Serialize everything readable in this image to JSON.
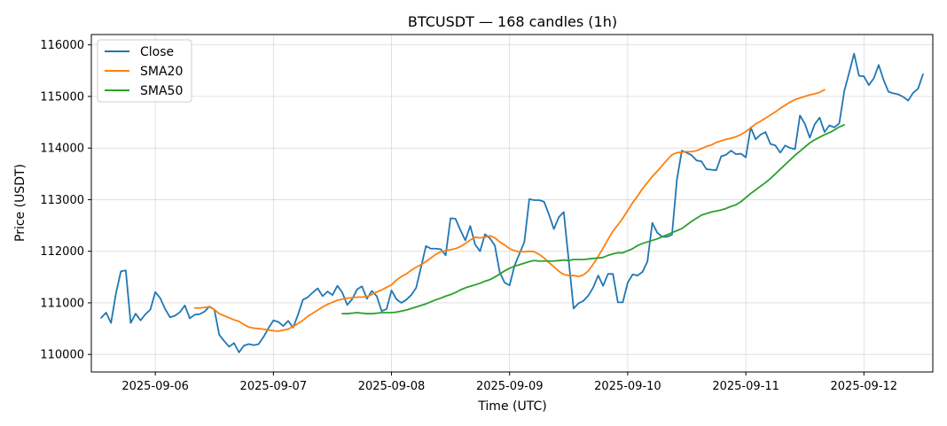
{
  "chart_data": {
    "type": "line",
    "title": "BTCUSDT — 168 candles (1h)",
    "xlabel": "Time (UTC)",
    "ylabel": "Price (USDT)",
    "x_unit": "hours",
    "x_start": "2025-09-05T13:00",
    "x_range": [
      "2025-09-05T11:00",
      "2025-09-12T14:00"
    ],
    "ylim": [
      109660,
      116200
    ],
    "yticks": [
      110000,
      111000,
      112000,
      113000,
      114000,
      115000,
      116000
    ],
    "ytick_labels": [
      "110000",
      "111000",
      "112000",
      "113000",
      "114000",
      "115000",
      "116000"
    ],
    "xticks": [
      "2025-09-06T00:00",
      "2025-09-07T00:00",
      "2025-09-08T00:00",
      "2025-09-09T00:00",
      "2025-09-10T00:00",
      "2025-09-11T00:00",
      "2025-09-12T00:00"
    ],
    "xtick_labels": [
      "2025-09-06",
      "2025-09-07",
      "2025-09-08",
      "2025-09-09",
      "2025-09-10",
      "2025-09-11",
      "2025-09-12"
    ],
    "grid": true,
    "legend_position": "top-left",
    "series": [
      {
        "name": "Close",
        "color": "#1f77b4",
        "start_hour": 0,
        "values": [
          110710,
          110810,
          110610,
          111180,
          111610,
          111630,
          110610,
          110790,
          110660,
          110780,
          110870,
          111210,
          111090,
          110880,
          110720,
          110750,
          110820,
          110950,
          110700,
          110770,
          110780,
          110830,
          110930,
          110870,
          110380,
          110260,
          110150,
          110220,
          110040,
          110170,
          110200,
          110180,
          110200,
          110340,
          110510,
          110660,
          110630,
          110550,
          110650,
          110520,
          110770,
          111060,
          111110,
          111200,
          111280,
          111130,
          111220,
          111150,
          111330,
          111200,
          110960,
          111070,
          111260,
          111320,
          111080,
          111230,
          111130,
          110840,
          110880,
          111240,
          111070,
          111000,
          111060,
          111150,
          111290,
          111690,
          112100,
          112050,
          112050,
          112040,
          111920,
          112640,
          112630,
          112410,
          112210,
          112490,
          112130,
          112000,
          112330,
          112250,
          112110,
          111590,
          111390,
          111340,
          111720,
          111950,
          112180,
          113010,
          112990,
          112990,
          112960,
          112710,
          112430,
          112660,
          112760,
          111830,
          110890,
          110990,
          111040,
          111140,
          111300,
          111530,
          111330,
          111560,
          111560,
          111010,
          111010,
          111390,
          111550,
          111530,
          111600,
          111800,
          112550,
          112360,
          112280,
          112280,
          112320,
          113390,
          113950,
          113910,
          113860,
          113760,
          113740,
          113590,
          113580,
          113570,
          113840,
          113870,
          113950,
          113880,
          113890,
          113820,
          114400,
          114170,
          114260,
          114310,
          114080,
          114050,
          113910,
          114050,
          114000,
          113980,
          114630,
          114470,
          114200,
          114460,
          114590,
          114310,
          114440,
          114400,
          114480,
          115100,
          115460,
          115830,
          115400,
          115390,
          115220,
          115350,
          115610,
          115320,
          115090,
          115060,
          115040,
          114990,
          114920,
          115070,
          115150,
          115430
        ]
      },
      {
        "name": "SMA20",
        "color": "#ff7f0e",
        "start_hour": 19,
        "values": [
          110900,
          110900,
          110910,
          110920,
          110870,
          110790,
          110750,
          110710,
          110670,
          110640,
          110580,
          110530,
          110510,
          110500,
          110490,
          110470,
          110460,
          110450,
          110470,
          110490,
          110540,
          110600,
          110660,
          110740,
          110800,
          110860,
          110920,
          110970,
          111010,
          111050,
          111070,
          111090,
          111100,
          111110,
          111110,
          111120,
          111160,
          111210,
          111250,
          111300,
          111350,
          111440,
          111510,
          111560,
          111630,
          111690,
          111740,
          111800,
          111870,
          111940,
          111990,
          112010,
          112030,
          112050,
          112090,
          112150,
          112220,
          112270,
          112260,
          112270,
          112300,
          112260,
          112180,
          112120,
          112050,
          112010,
          111990,
          111990,
          112000,
          111990,
          111940,
          111870,
          111780,
          111700,
          111610,
          111550,
          111530,
          111530,
          111510,
          111540,
          111620,
          111750,
          111900,
          112060,
          112230,
          112390,
          112510,
          112640,
          112790,
          112940,
          113070,
          113210,
          113330,
          113450,
          113550,
          113660,
          113770,
          113870,
          113910,
          113920,
          113930,
          113930,
          113950,
          113990,
          114030,
          114060,
          114110,
          114140,
          114170,
          114190,
          114220,
          114260,
          114320,
          114390,
          114470,
          114520,
          114580,
          114640,
          114700,
          114770,
          114830,
          114890,
          114940,
          114970,
          115000,
          115030,
          115050,
          115080,
          115130
        ]
      },
      {
        "name": "SMA50",
        "color": "#2ca02c",
        "start_hour": 49,
        "values": [
          110790,
          110790,
          110800,
          110810,
          110800,
          110790,
          110790,
          110800,
          110810,
          110810,
          110810,
          110820,
          110840,
          110860,
          110890,
          110920,
          110950,
          110980,
          111020,
          111060,
          111090,
          111130,
          111160,
          111200,
          111250,
          111290,
          111320,
          111350,
          111380,
          111420,
          111450,
          111500,
          111560,
          111620,
          111670,
          111710,
          111740,
          111770,
          111800,
          111820,
          111810,
          111810,
          111810,
          111810,
          111820,
          111830,
          111820,
          111840,
          111840,
          111840,
          111850,
          111860,
          111870,
          111880,
          111920,
          111950,
          111970,
          111970,
          112010,
          112050,
          112110,
          112150,
          112180,
          112210,
          112240,
          112280,
          112320,
          112360,
          112400,
          112440,
          112510,
          112580,
          112640,
          112700,
          112730,
          112760,
          112780,
          112800,
          112830,
          112870,
          112900,
          112960,
          113040,
          113120,
          113190,
          113260,
          113330,
          113410,
          113500,
          113590,
          113680,
          113770,
          113860,
          113940,
          114020,
          114100,
          114160,
          114210,
          114260,
          114300,
          114350,
          114410,
          114450
        ]
      }
    ]
  }
}
